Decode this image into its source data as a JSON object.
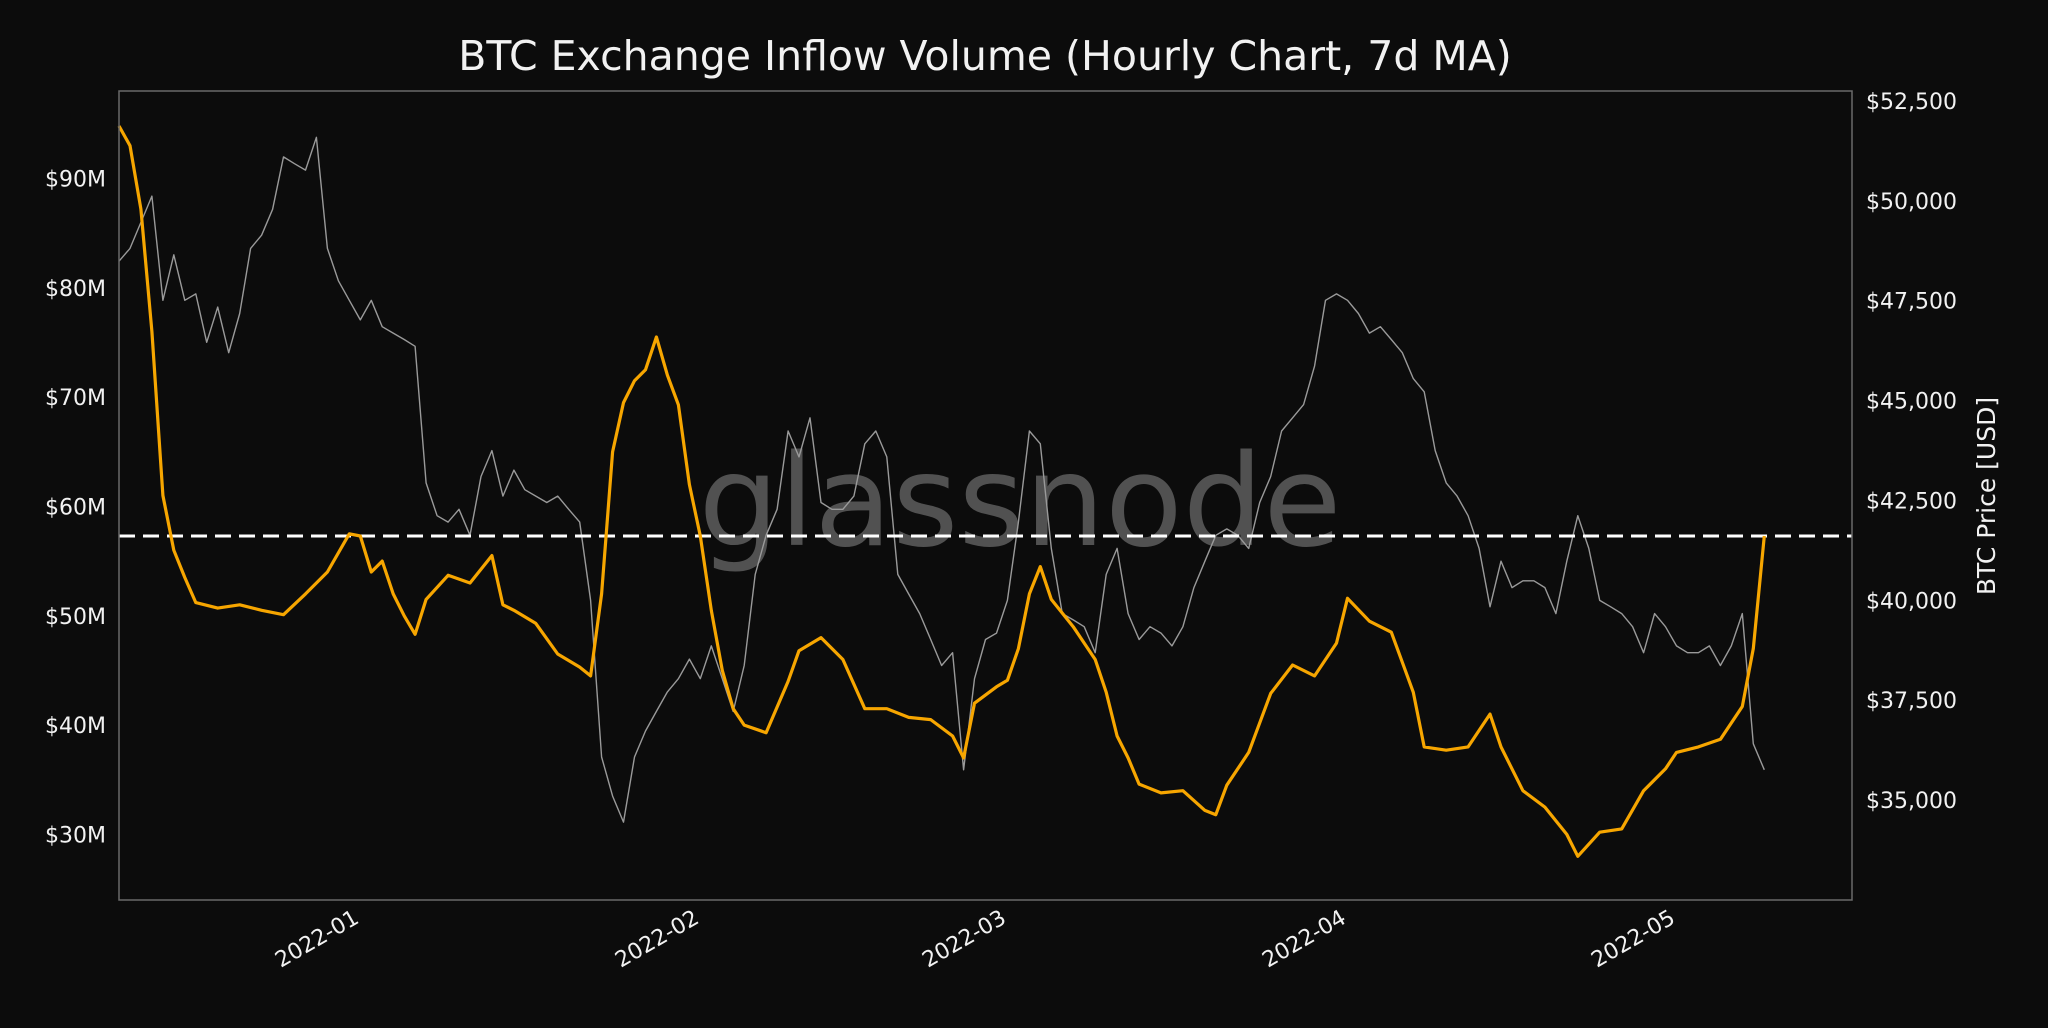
{
  "chart_data": {
    "type": "line",
    "title": "BTC Exchange Inflow Volume (Hourly Chart, 7d MA)",
    "xlabel": "",
    "ylabel_left": "",
    "ylabel_right": "BTC Price [USD]",
    "watermark": "glassnode",
    "grid": false,
    "legend": "none",
    "background": "#0c0c0c",
    "xlim": [
      "2021-12-10",
      "2022-05-17"
    ],
    "x_ticks": [
      {
        "date": "2022-01-01",
        "label": "2022-01"
      },
      {
        "date": "2022-02-01",
        "label": "2022-02"
      },
      {
        "date": "2022-03-01",
        "label": "2022-03"
      },
      {
        "date": "2022-04-01",
        "label": "2022-04"
      },
      {
        "date": "2022-05-01",
        "label": "2022-05"
      }
    ],
    "ylim_left": [
      24,
      98
    ],
    "y_ticks_left": [
      {
        "value": 30,
        "label": "$30M"
      },
      {
        "value": 40,
        "label": "$40M"
      },
      {
        "value": 50,
        "label": "$50M"
      },
      {
        "value": 60,
        "label": "$60M"
      },
      {
        "value": 70,
        "label": "$70M"
      },
      {
        "value": 80,
        "label": "$80M"
      },
      {
        "value": 90,
        "label": "$90M"
      }
    ],
    "ylim_right": [
      32500,
      52750
    ],
    "y_ticks_right": [
      {
        "value": 35000,
        "label": "$35,000"
      },
      {
        "value": 37500,
        "label": "$37,500"
      },
      {
        "value": 40000,
        "label": "$40,000"
      },
      {
        "value": 42500,
        "label": "$42,500"
      },
      {
        "value": 45000,
        "label": "$45,000"
      },
      {
        "value": 47500,
        "label": "$47,500"
      },
      {
        "value": 50000,
        "label": "$50,000"
      },
      {
        "value": 52500,
        "label": "$52,500"
      }
    ],
    "reference_line": {
      "axis": "left",
      "value": 57.3,
      "style": "dashed",
      "color": "#ffffff"
    },
    "series": [
      {
        "axis": "left",
        "unit": "USD millions",
        "color": "#f7a600",
        "points": [
          [
            "2021-12-10",
            94.8
          ],
          [
            "2021-12-11",
            93
          ],
          [
            "2021-12-12",
            87.2
          ],
          [
            "2021-12-13",
            76
          ],
          [
            "2021-12-14",
            61
          ],
          [
            "2021-12-15",
            56
          ],
          [
            "2021-12-16",
            53.5
          ],
          [
            "2021-12-17",
            51.2
          ],
          [
            "2021-12-19",
            50.7
          ],
          [
            "2021-12-21",
            51
          ],
          [
            "2021-12-23",
            50.5
          ],
          [
            "2021-12-25",
            50.1
          ],
          [
            "2021-12-27",
            52
          ],
          [
            "2021-12-29",
            54
          ],
          [
            "2021-12-31",
            57.5
          ],
          [
            "2022-01-01",
            57.3
          ],
          [
            "2022-01-02",
            54
          ],
          [
            "2022-01-03",
            55
          ],
          [
            "2022-01-04",
            52
          ],
          [
            "2022-01-05",
            50
          ],
          [
            "2022-01-06",
            48.3
          ],
          [
            "2022-01-07",
            51.5
          ],
          [
            "2022-01-09",
            53.7
          ],
          [
            "2022-01-11",
            53
          ],
          [
            "2022-01-13",
            55.5
          ],
          [
            "2022-01-14",
            51
          ],
          [
            "2022-01-15",
            50.5
          ],
          [
            "2022-01-17",
            49.3
          ],
          [
            "2022-01-19",
            46.5
          ],
          [
            "2022-01-21",
            45.3
          ],
          [
            "2022-01-22",
            44.5
          ],
          [
            "2022-01-23",
            52
          ],
          [
            "2022-01-24",
            65
          ],
          [
            "2022-01-25",
            69.5
          ],
          [
            "2022-01-26",
            71.5
          ],
          [
            "2022-01-27",
            72.5
          ],
          [
            "2022-01-28",
            75.5
          ],
          [
            "2022-01-29",
            72
          ],
          [
            "2022-01-30",
            69.3
          ],
          [
            "2022-01-31",
            62
          ],
          [
            "2022-02-01",
            57.3
          ],
          [
            "2022-02-02",
            50.5
          ],
          [
            "2022-02-03",
            45
          ],
          [
            "2022-02-04",
            41.5
          ],
          [
            "2022-02-05",
            40
          ],
          [
            "2022-02-07",
            39.3
          ],
          [
            "2022-02-09",
            44
          ],
          [
            "2022-02-10",
            46.8
          ],
          [
            "2022-02-12",
            48
          ],
          [
            "2022-02-14",
            46
          ],
          [
            "2022-02-16",
            41.5
          ],
          [
            "2022-02-18",
            41.5
          ],
          [
            "2022-02-20",
            40.7
          ],
          [
            "2022-02-22",
            40.5
          ],
          [
            "2022-02-24",
            39
          ],
          [
            "2022-02-25",
            37
          ],
          [
            "2022-02-26",
            42
          ],
          [
            "2022-02-28",
            43.5
          ],
          [
            "2022-03-01",
            44.1
          ],
          [
            "2022-03-02",
            47
          ],
          [
            "2022-03-03",
            52
          ],
          [
            "2022-03-04",
            54.5
          ],
          [
            "2022-03-05",
            51.5
          ],
          [
            "2022-03-07",
            49
          ],
          [
            "2022-03-09",
            46
          ],
          [
            "2022-03-10",
            43
          ],
          [
            "2022-03-11",
            39
          ],
          [
            "2022-03-12",
            37
          ],
          [
            "2022-03-13",
            34.6
          ],
          [
            "2022-03-15",
            33.8
          ],
          [
            "2022-03-17",
            34
          ],
          [
            "2022-03-19",
            32.2
          ],
          [
            "2022-03-20",
            31.8
          ],
          [
            "2022-03-21",
            34.5
          ],
          [
            "2022-03-23",
            37.5
          ],
          [
            "2022-03-25",
            42.9
          ],
          [
            "2022-03-27",
            45.5
          ],
          [
            "2022-03-29",
            44.5
          ],
          [
            "2022-03-31",
            47.5
          ],
          [
            "2022-04-01",
            51.6
          ],
          [
            "2022-04-03",
            49.5
          ],
          [
            "2022-04-05",
            48.5
          ],
          [
            "2022-04-07",
            43
          ],
          [
            "2022-04-08",
            38
          ],
          [
            "2022-04-10",
            37.7
          ],
          [
            "2022-04-12",
            38
          ],
          [
            "2022-04-14",
            41
          ],
          [
            "2022-04-15",
            38
          ],
          [
            "2022-04-17",
            34
          ],
          [
            "2022-04-19",
            32.5
          ],
          [
            "2022-04-21",
            30
          ],
          [
            "2022-04-22",
            28
          ],
          [
            "2022-04-24",
            30.2
          ],
          [
            "2022-04-26",
            30.5
          ],
          [
            "2022-04-28",
            34
          ],
          [
            "2022-04-30",
            36
          ],
          [
            "2022-05-01",
            37.5
          ],
          [
            "2022-05-03",
            38
          ],
          [
            "2022-05-05",
            38.7
          ],
          [
            "2022-05-07",
            41.7
          ],
          [
            "2022-05-08",
            47
          ],
          [
            "2022-05-09",
            57.3
          ]
        ]
      },
      {
        "axis": "right",
        "unit": "USD",
        "color": "#9a9a9a",
        "points": [
          [
            "2021-12-10",
            48490
          ],
          [
            "2021-12-11",
            48810
          ],
          [
            "2021-12-12",
            49460
          ],
          [
            "2021-12-13",
            50120
          ],
          [
            "2021-12-14",
            47510
          ],
          [
            "2021-12-15",
            48650
          ],
          [
            "2021-12-16",
            47510
          ],
          [
            "2021-12-17",
            47670
          ],
          [
            "2021-12-18",
            46460
          ],
          [
            "2021-12-19",
            47340
          ],
          [
            "2021-12-20",
            46200
          ],
          [
            "2021-12-21",
            47180
          ],
          [
            "2021-12-22",
            48810
          ],
          [
            "2021-12-23",
            49140
          ],
          [
            "2021-12-24",
            49790
          ],
          [
            "2021-12-25",
            51100
          ],
          [
            "2021-12-26",
            50930
          ],
          [
            "2021-12-27",
            50770
          ],
          [
            "2021-12-28",
            51590
          ],
          [
            "2021-12-29",
            48810
          ],
          [
            "2021-12-30",
            48000
          ],
          [
            "2021-12-31",
            47510
          ],
          [
            "2022-01-01",
            47020
          ],
          [
            "2022-01-02",
            47510
          ],
          [
            "2022-01-03",
            46850
          ],
          [
            "2022-01-04",
            46690
          ],
          [
            "2022-01-05",
            46530
          ],
          [
            "2022-01-06",
            46360
          ],
          [
            "2022-01-07",
            42940
          ],
          [
            "2022-01-08",
            42120
          ],
          [
            "2022-01-09",
            41960
          ],
          [
            "2022-01-10",
            42280
          ],
          [
            "2022-01-11",
            41630
          ],
          [
            "2022-01-12",
            43100
          ],
          [
            "2022-01-13",
            43750
          ],
          [
            "2022-01-14",
            42610
          ],
          [
            "2022-01-15",
            43260
          ],
          [
            "2022-01-16",
            42770
          ],
          [
            "2022-01-17",
            42610
          ],
          [
            "2022-01-18",
            42450
          ],
          [
            "2022-01-19",
            42610
          ],
          [
            "2022-01-20",
            42280
          ],
          [
            "2022-01-21",
            41960
          ],
          [
            "2022-01-22",
            40000
          ],
          [
            "2022-01-23",
            36080
          ],
          [
            "2022-01-24",
            35100
          ],
          [
            "2022-01-25",
            34450
          ],
          [
            "2022-01-26",
            36080
          ],
          [
            "2022-01-27",
            36730
          ],
          [
            "2022-01-28",
            37220
          ],
          [
            "2022-01-29",
            37710
          ],
          [
            "2022-01-30",
            38040
          ],
          [
            "2022-01-31",
            38530
          ],
          [
            "2022-02-01",
            38040
          ],
          [
            "2022-02-02",
            38860
          ],
          [
            "2022-02-03",
            38040
          ],
          [
            "2022-02-04",
            37220
          ],
          [
            "2022-02-05",
            38370
          ],
          [
            "2022-02-06",
            40650
          ],
          [
            "2022-02-07",
            41630
          ],
          [
            "2022-02-08",
            42280
          ],
          [
            "2022-02-09",
            44240
          ],
          [
            "2022-02-10",
            43590
          ],
          [
            "2022-02-11",
            44570
          ],
          [
            "2022-02-12",
            42450
          ],
          [
            "2022-02-13",
            42280
          ],
          [
            "2022-02-14",
            42280
          ],
          [
            "2022-02-15",
            42610
          ],
          [
            "2022-02-16",
            43920
          ],
          [
            "2022-02-17",
            44240
          ],
          [
            "2022-02-18",
            43590
          ],
          [
            "2022-02-19",
            40650
          ],
          [
            "2022-02-20",
            40160
          ],
          [
            "2022-02-21",
            39670
          ],
          [
            "2022-02-22",
            39020
          ],
          [
            "2022-02-23",
            38370
          ],
          [
            "2022-02-24",
            38690
          ],
          [
            "2022-02-25",
            35760
          ],
          [
            "2022-02-26",
            38040
          ],
          [
            "2022-02-27",
            39020
          ],
          [
            "2022-02-28",
            39180
          ],
          [
            "2022-03-01",
            40000
          ],
          [
            "2022-03-02",
            41960
          ],
          [
            "2022-03-03",
            44240
          ],
          [
            "2022-03-04",
            43920
          ],
          [
            "2022-03-05",
            41300
          ],
          [
            "2022-03-06",
            39670
          ],
          [
            "2022-03-07",
            39510
          ],
          [
            "2022-03-08",
            39340
          ],
          [
            "2022-03-09",
            38690
          ],
          [
            "2022-03-10",
            40650
          ],
          [
            "2022-03-11",
            41300
          ],
          [
            "2022-03-12",
            39670
          ],
          [
            "2022-03-13",
            39020
          ],
          [
            "2022-03-14",
            39340
          ],
          [
            "2022-03-15",
            39180
          ],
          [
            "2022-03-16",
            38860
          ],
          [
            "2022-03-17",
            39340
          ],
          [
            "2022-03-18",
            40320
          ],
          [
            "2022-03-19",
            40980
          ],
          [
            "2022-03-20",
            41630
          ],
          [
            "2022-03-21",
            41790
          ],
          [
            "2022-03-22",
            41630
          ],
          [
            "2022-03-23",
            41300
          ],
          [
            "2022-03-24",
            42450
          ],
          [
            "2022-03-25",
            43100
          ],
          [
            "2022-03-26",
            44240
          ],
          [
            "2022-03-27",
            44570
          ],
          [
            "2022-03-28",
            44900
          ],
          [
            "2022-03-29",
            45870
          ],
          [
            "2022-03-30",
            47510
          ],
          [
            "2022-03-31",
            47670
          ],
          [
            "2022-04-01",
            47510
          ],
          [
            "2022-04-02",
            47180
          ],
          [
            "2022-04-03",
            46690
          ],
          [
            "2022-04-04",
            46850
          ],
          [
            "2022-04-05",
            46530
          ],
          [
            "2022-04-06",
            46200
          ],
          [
            "2022-04-07",
            45550
          ],
          [
            "2022-04-08",
            45220
          ],
          [
            "2022-04-09",
            43750
          ],
          [
            "2022-04-10",
            42940
          ],
          [
            "2022-04-11",
            42610
          ],
          [
            "2022-04-12",
            42120
          ],
          [
            "2022-04-13",
            41300
          ],
          [
            "2022-04-14",
            39840
          ],
          [
            "2022-04-15",
            40980
          ],
          [
            "2022-04-16",
            40320
          ],
          [
            "2022-04-17",
            40490
          ],
          [
            "2022-04-18",
            40490
          ],
          [
            "2022-04-19",
            40320
          ],
          [
            "2022-04-20",
            39670
          ],
          [
            "2022-04-21",
            40980
          ],
          [
            "2022-04-22",
            42120
          ],
          [
            "2022-04-23",
            41300
          ],
          [
            "2022-04-24",
            40000
          ],
          [
            "2022-04-25",
            39840
          ],
          [
            "2022-04-26",
            39670
          ],
          [
            "2022-04-27",
            39340
          ],
          [
            "2022-04-28",
            38690
          ],
          [
            "2022-04-29",
            39670
          ],
          [
            "2022-04-30",
            39340
          ],
          [
            "2022-05-01",
            38860
          ],
          [
            "2022-05-02",
            38690
          ],
          [
            "2022-05-03",
            38690
          ],
          [
            "2022-05-04",
            38860
          ],
          [
            "2022-05-05",
            38370
          ],
          [
            "2022-05-06",
            38860
          ],
          [
            "2022-05-07",
            39670
          ],
          [
            "2022-05-08",
            36410
          ],
          [
            "2022-05-09",
            35760
          ]
        ]
      }
    ]
  }
}
